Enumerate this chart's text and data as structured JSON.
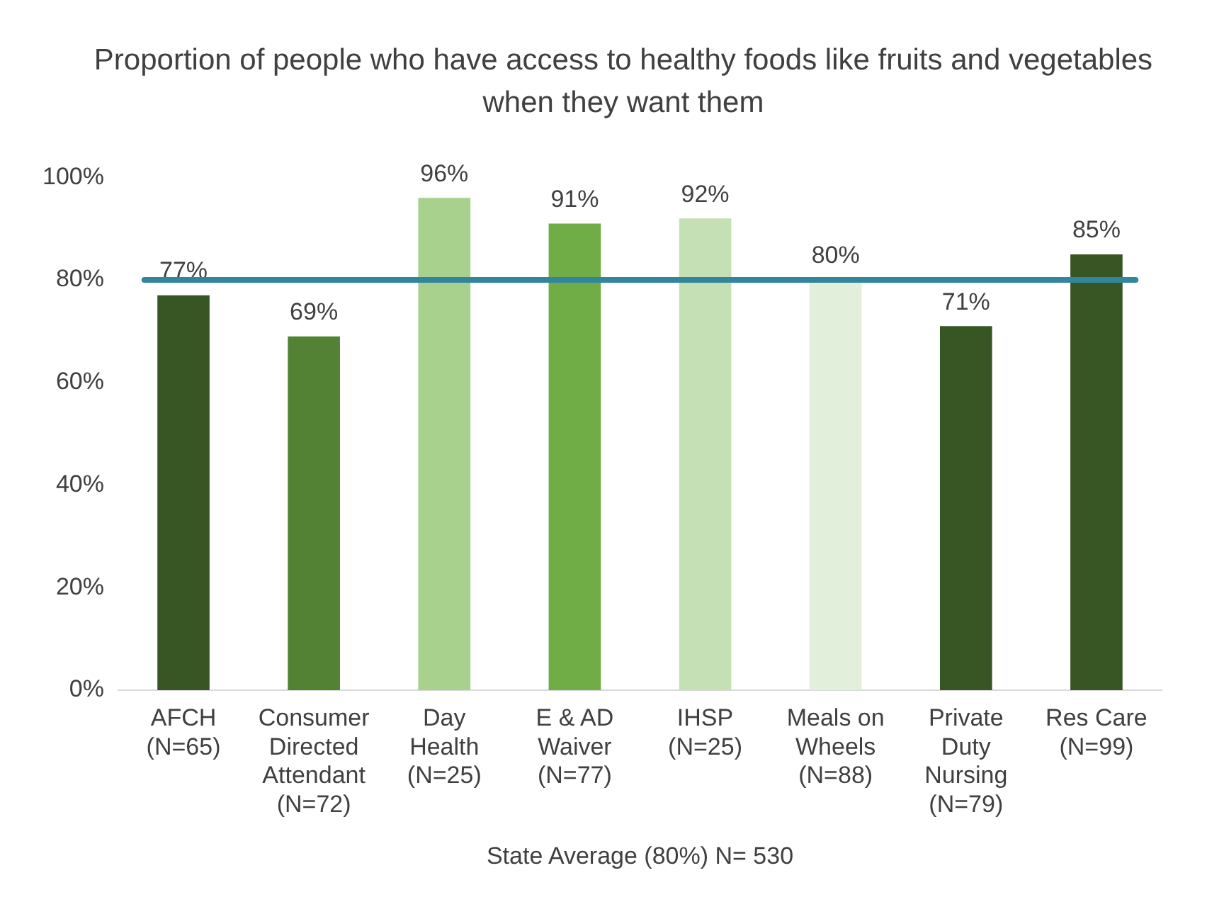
{
  "chart_data": {
    "type": "bar",
    "title": "Proportion of people who have access to healthy foods like fruits and vegetables when they want them",
    "categories": [
      "AFCH (N=65)",
      "Consumer Directed Attendant (N=72)",
      "Day Health (N=25)",
      "E & AD Waiver (N=77)",
      "IHSP (N=25)",
      "Meals on Wheels (N=88)",
      "Private Duty Nursing (N=79)",
      "Res Care (N=99)"
    ],
    "values": [
      77,
      69,
      96,
      91,
      92,
      80,
      71,
      85
    ],
    "colors": [
      "#375623",
      "#548235",
      "#a9d18e",
      "#70ad47",
      "#c5e0b4",
      "#e2efda",
      "#375623",
      "#375623"
    ],
    "value_labels": [
      "77%",
      "69%",
      "96%",
      "91%",
      "92%",
      "80%",
      "71%",
      "85%"
    ],
    "ylim": [
      0,
      100
    ],
    "yticks": [
      {
        "value": 0,
        "label": "0%"
      },
      {
        "value": 20,
        "label": "20%"
      },
      {
        "value": 40,
        "label": "40%"
      },
      {
        "value": 60,
        "label": "60%"
      },
      {
        "value": 80,
        "label": "80%"
      },
      {
        "value": 100,
        "label": "100%"
      }
    ],
    "xlabel": "State Average (80%) N= 530",
    "ref_lines": [
      {
        "axis": "y",
        "value": 80,
        "color": "#31859c"
      }
    ],
    "grid": false,
    "legend": false
  }
}
